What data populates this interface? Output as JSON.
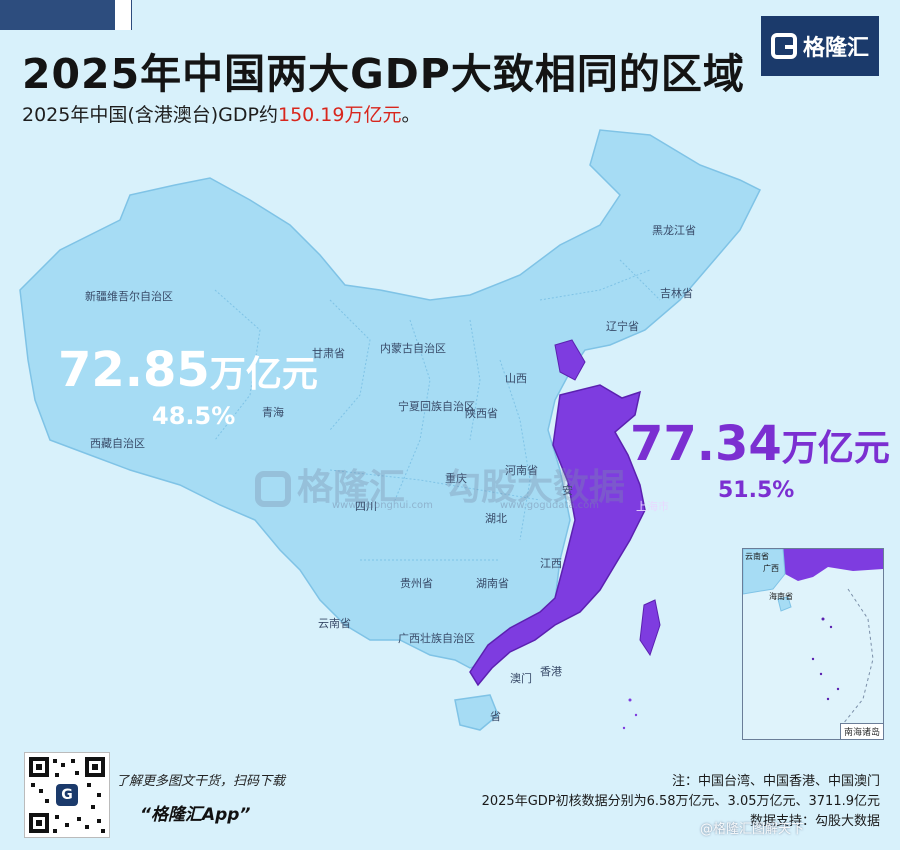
{
  "title": "2025年中国两大GDP大致相同的区域",
  "subtitle": {
    "prefix": "2025年中国(含港澳台)GDP约",
    "highlight": "150.19万亿元",
    "suffix": "。"
  },
  "brand": {
    "name": "格隆汇"
  },
  "regions": {
    "west": {
      "value": "72.85",
      "unit": "万亿元",
      "percent": "48.5%",
      "color": "#a6dcf4"
    },
    "east": {
      "value": "77.34",
      "unit": "万亿元",
      "percent": "51.5%",
      "color": "#7e3ce0"
    }
  },
  "province_labels": [
    {
      "id": "xinjiang",
      "text": "新疆维吾尔自治区"
    },
    {
      "id": "tibet",
      "text": "西藏自治区"
    },
    {
      "id": "qinghai",
      "text": "青海"
    },
    {
      "id": "gansu",
      "text": "甘肃省"
    },
    {
      "id": "neimenggu",
      "text": "内蒙古自治区"
    },
    {
      "id": "heilongjiang",
      "text": "黑龙江省"
    },
    {
      "id": "jilin",
      "text": "吉林省"
    },
    {
      "id": "liaoning",
      "text": "辽宁省"
    },
    {
      "id": "ningxia",
      "text": "宁夏回族自治区"
    },
    {
      "id": "shaanxi",
      "text": "陕西省"
    },
    {
      "id": "shanxi",
      "text": "山西"
    },
    {
      "id": "sichuan",
      "text": "四川"
    },
    {
      "id": "chongqing",
      "text": "重庆"
    },
    {
      "id": "guizhou",
      "text": "贵州省"
    },
    {
      "id": "yunnan",
      "text": "云南省"
    },
    {
      "id": "guangxi",
      "text": "广西壮族自治区"
    },
    {
      "id": "hunan",
      "text": "湖南省"
    },
    {
      "id": "hubei",
      "text": "湖北"
    },
    {
      "id": "henan",
      "text": "河南省"
    },
    {
      "id": "jiangxi",
      "text": "江西"
    },
    {
      "id": "anhui",
      "text": "安"
    },
    {
      "id": "xianggang",
      "text": "香港"
    },
    {
      "id": "aomen",
      "text": "澳门"
    },
    {
      "id": "hainan",
      "text": "省"
    },
    {
      "id": "shanghai",
      "text": "上海市"
    }
  ],
  "watermark": {
    "left": "格隆汇",
    "right": "勾股大数据",
    "url_left": "www.gelonghui.com",
    "url_right": "www.gogudata.com"
  },
  "inset": {
    "caption": "南海诸岛",
    "labels": [
      "云南省",
      "广西",
      "海南省"
    ]
  },
  "promo": {
    "text": "了解更多图文干货，扫码下载",
    "app": "“格隆汇App”"
  },
  "notes": {
    "line1": "注：中国台湾、中国香港、中国澳门",
    "line2": "2025年GDP初核数据分别为6.58万亿元、3.05万亿元、3711.9亿元",
    "line3": "数据支持：勾股大数据"
  },
  "footer_watermark": "@格隆汇图解天下"
}
